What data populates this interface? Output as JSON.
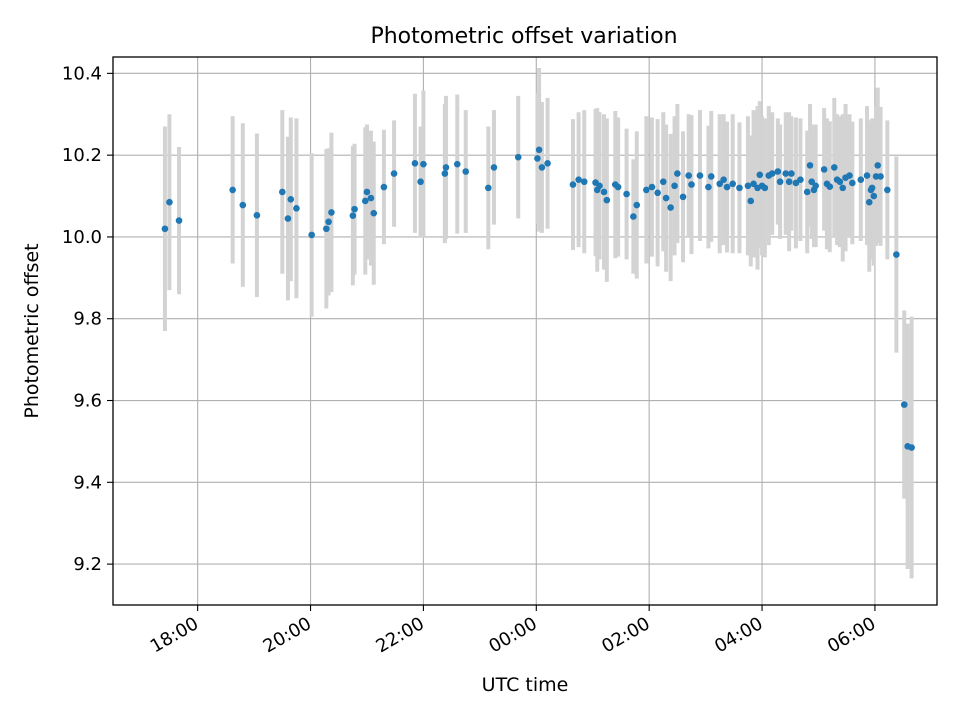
{
  "chart_data": {
    "type": "scatter",
    "title": "Photometric offset variation",
    "xlabel": "UTC time",
    "ylabel": "Photometric offset",
    "x_unit": "hours (UTC, continuing past midnight)",
    "xlim": [
      16.5,
      31.1
    ],
    "ylim": [
      9.1,
      10.44
    ],
    "x_ticks": [
      {
        "value": 18,
        "label": "18:00"
      },
      {
        "value": 20,
        "label": "20:00"
      },
      {
        "value": 22,
        "label": "22:00"
      },
      {
        "value": 24,
        "label": "00:00"
      },
      {
        "value": 26,
        "label": "02:00"
      },
      {
        "value": 28,
        "label": "04:00"
      },
      {
        "value": 30,
        "label": "06:00"
      }
    ],
    "y_ticks": [
      {
        "value": 9.2,
        "label": "9.2"
      },
      {
        "value": 9.4,
        "label": "9.4"
      },
      {
        "value": 9.6,
        "label": "9.6"
      },
      {
        "value": 9.8,
        "label": "9.8"
      },
      {
        "value": 10.0,
        "label": "10.0"
      },
      {
        "value": 10.2,
        "label": "10.2"
      },
      {
        "value": 10.4,
        "label": "10.4"
      }
    ],
    "grid": true,
    "colors": {
      "points": "#1f77b4",
      "error_bars": "#d3d3d3",
      "grid": "#b0b0b0"
    },
    "points": [
      [
        17.42,
        10.02,
        0.25
      ],
      [
        17.5,
        10.085,
        0.215
      ],
      [
        17.67,
        10.04,
        0.18
      ],
      [
        18.62,
        10.115,
        0.18
      ],
      [
        18.8,
        10.078,
        0.2
      ],
      [
        19.05,
        10.053,
        0.2
      ],
      [
        19.5,
        10.11,
        0.2
      ],
      [
        19.6,
        10.045,
        0.2
      ],
      [
        19.65,
        10.092,
        0.2
      ],
      [
        19.75,
        10.07,
        0.22
      ],
      [
        20.02,
        10.005,
        0.2
      ],
      [
        20.28,
        10.02,
        0.195
      ],
      [
        20.32,
        10.037,
        0.18
      ],
      [
        20.37,
        10.06,
        0.195
      ],
      [
        20.75,
        10.052,
        0.17
      ],
      [
        20.78,
        10.068,
        0.16
      ],
      [
        20.97,
        10.088,
        0.18
      ],
      [
        21.0,
        10.11,
        0.165
      ],
      [
        21.07,
        10.095,
        0.165
      ],
      [
        21.12,
        10.058,
        0.175
      ],
      [
        21.3,
        10.122,
        0.14
      ],
      [
        21.48,
        10.155,
        0.13
      ],
      [
        21.85,
        10.18,
        0.17
      ],
      [
        21.95,
        10.135,
        0.135
      ],
      [
        22.0,
        10.178,
        0.18
      ],
      [
        22.38,
        10.155,
        0.17
      ],
      [
        22.4,
        10.17,
        0.175
      ],
      [
        22.6,
        10.178,
        0.17
      ],
      [
        22.75,
        10.16,
        0.15
      ],
      [
        23.15,
        10.12,
        0.15
      ],
      [
        23.25,
        10.17,
        0.14
      ],
      [
        23.68,
        10.195,
        0.15
      ],
      [
        24.05,
        10.213,
        0.2
      ],
      [
        24.02,
        10.192,
        0.16
      ],
      [
        24.1,
        10.17,
        0.16
      ],
      [
        24.2,
        10.18,
        0.16
      ],
      [
        24.65,
        10.128,
        0.16
      ],
      [
        24.75,
        10.14,
        0.165
      ],
      [
        24.85,
        10.135,
        0.175
      ],
      [
        25.05,
        10.133,
        0.18
      ],
      [
        25.08,
        10.115,
        0.2
      ],
      [
        25.12,
        10.125,
        0.18
      ],
      [
        25.2,
        10.11,
        0.19
      ],
      [
        25.25,
        10.09,
        0.2
      ],
      [
        25.4,
        10.128,
        0.18
      ],
      [
        25.45,
        10.122,
        0.17
      ],
      [
        25.6,
        10.105,
        0.16
      ],
      [
        25.72,
        10.05,
        0.14
      ],
      [
        25.78,
        10.078,
        0.18
      ],
      [
        25.95,
        10.115,
        0.18
      ],
      [
        26.05,
        10.122,
        0.17
      ],
      [
        26.15,
        10.108,
        0.18
      ],
      [
        26.25,
        10.135,
        0.17
      ],
      [
        26.3,
        10.095,
        0.18
      ],
      [
        26.38,
        10.072,
        0.18
      ],
      [
        26.45,
        10.125,
        0.17
      ],
      [
        26.5,
        10.155,
        0.17
      ],
      [
        26.6,
        10.098,
        0.16
      ],
      [
        26.7,
        10.15,
        0.15
      ],
      [
        26.75,
        10.128,
        0.17
      ],
      [
        26.9,
        10.15,
        0.16
      ],
      [
        27.05,
        10.122,
        0.15
      ],
      [
        27.1,
        10.148,
        0.16
      ],
      [
        27.25,
        10.13,
        0.17
      ],
      [
        27.32,
        10.14,
        0.16
      ],
      [
        27.38,
        10.122,
        0.16
      ],
      [
        27.48,
        10.13,
        0.17
      ],
      [
        27.6,
        10.12,
        0.16
      ],
      [
        27.75,
        10.125,
        0.17
      ],
      [
        27.8,
        10.088,
        0.16
      ],
      [
        27.85,
        10.13,
        0.18
      ],
      [
        27.92,
        10.12,
        0.2
      ],
      [
        27.96,
        10.152,
        0.18
      ],
      [
        28.0,
        10.125,
        0.17
      ],
      [
        28.05,
        10.12,
        0.17
      ],
      [
        28.12,
        10.15,
        0.17
      ],
      [
        28.18,
        10.155,
        0.15
      ],
      [
        28.28,
        10.16,
        0.13
      ],
      [
        28.32,
        10.135,
        0.14
      ],
      [
        28.42,
        10.155,
        0.15
      ],
      [
        28.48,
        10.135,
        0.17
      ],
      [
        28.52,
        10.155,
        0.14
      ],
      [
        28.6,
        10.132,
        0.16
      ],
      [
        28.68,
        10.14,
        0.15
      ],
      [
        28.8,
        10.11,
        0.15
      ],
      [
        28.85,
        10.175,
        0.15
      ],
      [
        28.88,
        10.135,
        0.14
      ],
      [
        28.92,
        10.115,
        0.14
      ],
      [
        28.95,
        10.125,
        0.15
      ],
      [
        29.1,
        10.165,
        0.15
      ],
      [
        29.15,
        10.13,
        0.16
      ],
      [
        29.2,
        10.123,
        0.16
      ],
      [
        29.28,
        10.17,
        0.17
      ],
      [
        29.33,
        10.14,
        0.16
      ],
      [
        29.38,
        10.135,
        0.16
      ],
      [
        29.43,
        10.12,
        0.18
      ],
      [
        29.48,
        10.145,
        0.18
      ],
      [
        29.55,
        10.15,
        0.15
      ],
      [
        29.6,
        10.132,
        0.15
      ],
      [
        29.75,
        10.14,
        0.15
      ],
      [
        29.86,
        10.15,
        0.17
      ],
      [
        29.9,
        10.085,
        0.17
      ],
      [
        29.93,
        10.115,
        0.17
      ],
      [
        29.95,
        10.12,
        0.17
      ],
      [
        29.98,
        10.1,
        0.17
      ],
      [
        30.02,
        10.148,
        0.17
      ],
      [
        30.05,
        10.175,
        0.19
      ],
      [
        30.1,
        10.148,
        0.17
      ],
      [
        30.22,
        10.115,
        0.17
      ],
      [
        30.38,
        9.957,
        0.24
      ],
      [
        30.52,
        9.59,
        0.23
      ],
      [
        30.58,
        9.488,
        0.3
      ],
      [
        30.65,
        9.485,
        0.32
      ]
    ]
  }
}
